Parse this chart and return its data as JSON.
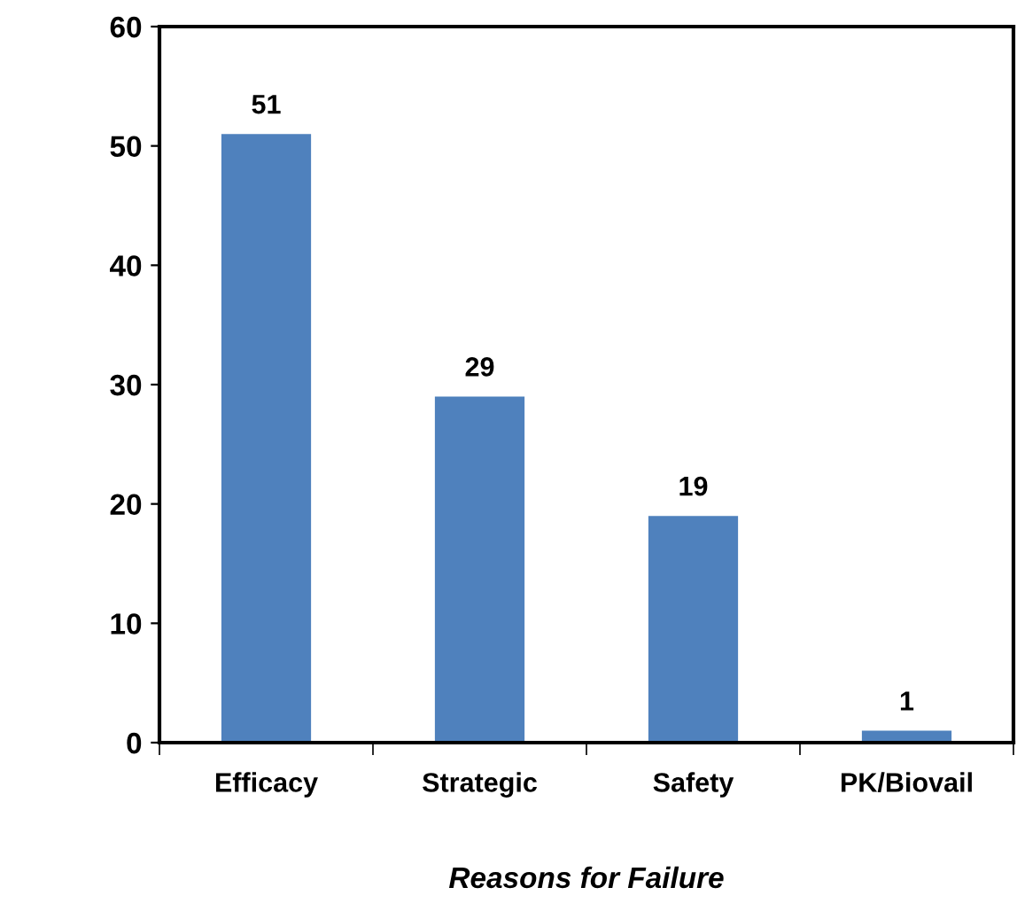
{
  "chart_data": {
    "type": "bar",
    "xlabel": "Reasons for Failure",
    "categories": [
      "Efficacy",
      "Strategic",
      "Safety",
      "PK/Biovail"
    ],
    "values": [
      51,
      29,
      19,
      1
    ],
    "color": "#4f81bd",
    "ylim": [
      0,
      60
    ],
    "yticks": [
      0,
      10,
      20,
      30,
      40,
      50,
      60
    ],
    "grid": false,
    "data_labels": true
  }
}
